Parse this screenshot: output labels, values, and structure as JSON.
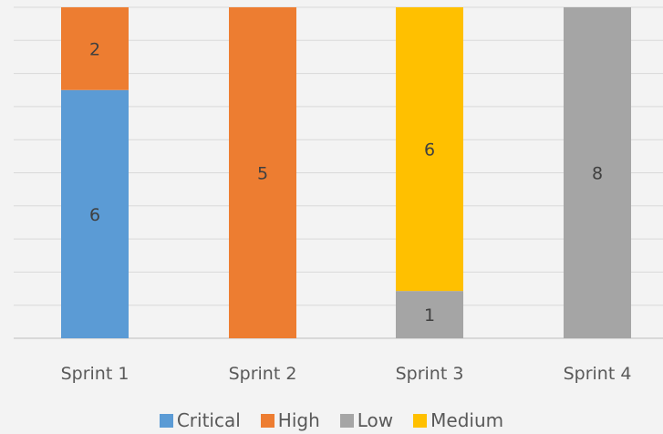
{
  "chart_data": {
    "type": "bar",
    "stacked": true,
    "categories": [
      "Sprint 1",
      "Sprint 2",
      "Sprint 3",
      "Sprint 4"
    ],
    "series": [
      {
        "name": "Critical",
        "color": "#5b9bd5",
        "values": [
          6,
          0,
          0,
          0
        ]
      },
      {
        "name": "High",
        "color": "#ed7d31",
        "values": [
          2,
          5,
          0,
          0
        ]
      },
      {
        "name": "Low",
        "color": "#a5a5a5",
        "values": [
          0,
          0,
          1,
          8
        ]
      },
      {
        "name": "Medium",
        "color": "#ffc000",
        "values": [
          0,
          0,
          6,
          0
        ]
      }
    ],
    "category_totals": [
      8,
      5,
      7,
      8
    ],
    "bars_normalized_to_full_height": true,
    "grid": true,
    "legend_position": "bottom",
    "title": "",
    "xlabel": "",
    "ylabel": ""
  }
}
